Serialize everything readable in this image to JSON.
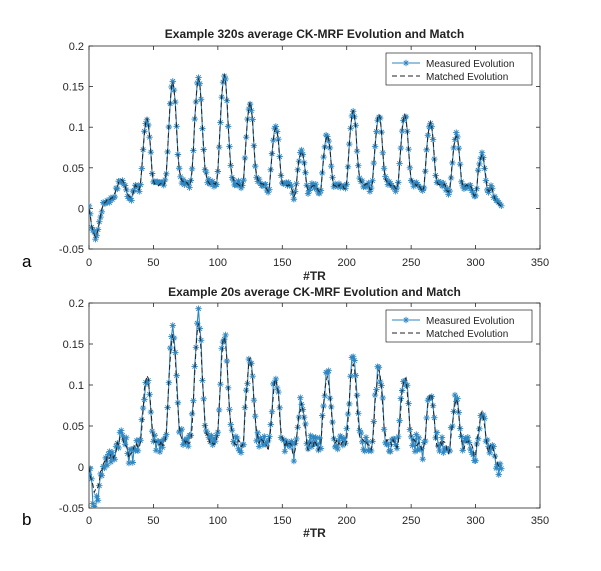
{
  "panel_labels": [
    "a",
    "b"
  ],
  "chart_data": [
    {
      "type": "line",
      "title": "Example 320s average CK-MRF Evolution and Match",
      "xlabel": "#TR",
      "ylabel": "",
      "xlim": [
        0,
        350
      ],
      "ylim": [
        -0.05,
        0.2
      ],
      "xticks": [
        0,
        50,
        100,
        150,
        200,
        250,
        300,
        350
      ],
      "yticks": [
        -0.05,
        0,
        0.05,
        0.1,
        0.15,
        0.2
      ],
      "ytick_labels": [
        "-0.05",
        "0",
        "0.05",
        "0.1",
        "0.15",
        "0.2"
      ],
      "legend": {
        "position": "top-right",
        "entries": [
          "Measured Evolution",
          "Matched Evolution"
        ]
      },
      "series": [
        {
          "name": "Measured Evolution",
          "style": "solid-star",
          "color": "#2e86c1",
          "peaks": [
            [
              5,
              -0.035
            ],
            [
              25,
              0.035
            ],
            [
              45,
              0.11
            ],
            [
              65,
              0.155
            ],
            [
              85,
              0.16
            ],
            [
              105,
              0.165
            ],
            [
              125,
              0.13
            ],
            [
              145,
              0.1
            ],
            [
              165,
              0.07
            ],
            [
              185,
              0.09
            ],
            [
              205,
              0.12
            ],
            [
              225,
              0.115
            ],
            [
              245,
              0.115
            ],
            [
              265,
              0.105
            ],
            [
              285,
              0.09
            ],
            [
              305,
              0.065
            ]
          ],
          "baseline": 0.02,
          "x_end": 320,
          "end_value": 0.003
        },
        {
          "name": "Matched Evolution",
          "style": "dashed",
          "color": "#222222",
          "peaks": [
            [
              5,
              -0.035
            ],
            [
              25,
              0.035
            ],
            [
              45,
              0.11
            ],
            [
              65,
              0.155
            ],
            [
              85,
              0.16
            ],
            [
              105,
              0.165
            ],
            [
              125,
              0.13
            ],
            [
              145,
              0.1
            ],
            [
              165,
              0.07
            ],
            [
              185,
              0.09
            ],
            [
              205,
              0.12
            ],
            [
              225,
              0.115
            ],
            [
              245,
              0.115
            ],
            [
              265,
              0.105
            ],
            [
              285,
              0.09
            ],
            [
              305,
              0.065
            ]
          ],
          "baseline": 0.02,
          "x_end": 320,
          "end_value": 0.003
        }
      ],
      "noise": 0.004
    },
    {
      "type": "line",
      "title": "Example 20s average CK-MRF Evolution and Match",
      "xlabel": "#TR",
      "ylabel": "",
      "xlim": [
        0,
        350
      ],
      "ylim": [
        -0.05,
        0.2
      ],
      "xticks": [
        0,
        50,
        100,
        150,
        200,
        250,
        300,
        350
      ],
      "yticks": [
        -0.05,
        0,
        0.05,
        0.1,
        0.15,
        0.2
      ],
      "ytick_labels": [
        "-0.05",
        "0",
        "0.05",
        "0.1",
        "0.15",
        "0.2"
      ],
      "legend": {
        "position": "top-right",
        "entries": [
          "Measured Evolution",
          "Matched Evolution"
        ]
      },
      "series": [
        {
          "name": "Measured Evolution",
          "style": "solid-star",
          "color": "#2e86c1",
          "peaks": [
            [
              5,
              -0.045
            ],
            [
              25,
              0.04
            ],
            [
              45,
              0.11
            ],
            [
              65,
              0.165
            ],
            [
              85,
              0.185
            ],
            [
              105,
              0.16
            ],
            [
              125,
              0.135
            ],
            [
              145,
              0.11
            ],
            [
              165,
              0.08
            ],
            [
              185,
              0.115
            ],
            [
              205,
              0.13
            ],
            [
              225,
              0.12
            ],
            [
              245,
              0.115
            ],
            [
              265,
              0.095
            ],
            [
              285,
              0.085
            ],
            [
              305,
              0.065
            ]
          ],
          "baseline": 0.02,
          "x_end": 320,
          "end_value": 0.0
        },
        {
          "name": "Matched Evolution",
          "style": "dashed",
          "color": "#222222",
          "peaks": [
            [
              5,
              -0.03
            ],
            [
              25,
              0.035
            ],
            [
              45,
              0.11
            ],
            [
              65,
              0.16
            ],
            [
              85,
              0.175
            ],
            [
              105,
              0.16
            ],
            [
              125,
              0.13
            ],
            [
              145,
              0.105
            ],
            [
              165,
              0.075
            ],
            [
              185,
              0.11
            ],
            [
              205,
              0.125
            ],
            [
              225,
              0.115
            ],
            [
              245,
              0.11
            ],
            [
              265,
              0.09
            ],
            [
              285,
              0.08
            ],
            [
              305,
              0.065
            ]
          ],
          "baseline": 0.02,
          "x_end": 320,
          "end_value": 0.0
        }
      ],
      "noise": 0.012
    }
  ]
}
